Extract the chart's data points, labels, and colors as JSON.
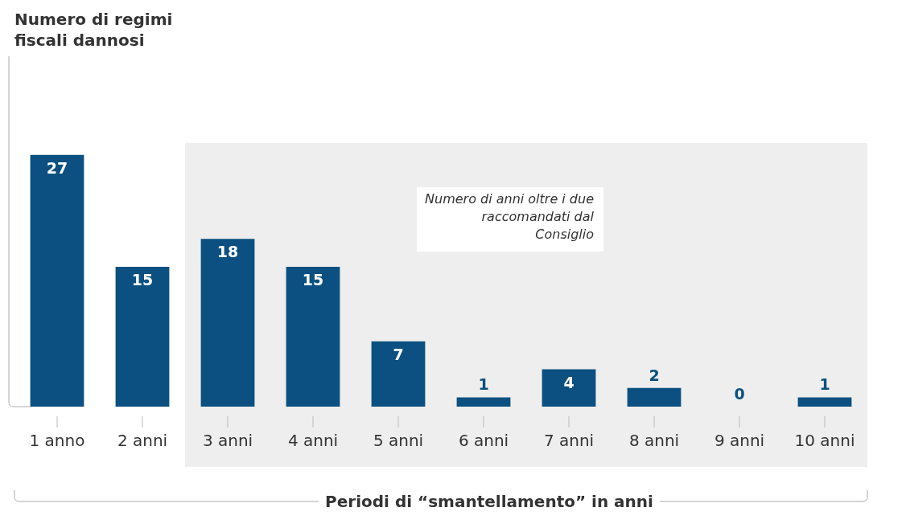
{
  "chart_data": {
    "type": "bar",
    "annotations": [
      "Numero di regimi fiscali dannosi"
    ],
    "xlabel": "Periodi di “smantellamento” in anni",
    "categories": [
      "1 anno",
      "2 anni",
      "3 anni",
      "4 anni",
      "5 anni",
      "6 anni",
      "7 anni",
      "8 anni",
      "9 anni",
      "10 anni"
    ],
    "values": [
      27,
      15,
      18,
      15,
      7,
      1,
      4,
      2,
      0,
      1
    ],
    "color": "#0b5080",
    "data_labels": true,
    "grid": false,
    "legend": false,
    "bands": [
      {
        "axis": "x",
        "from": "3 anni",
        "to": "10 anni",
        "label": "Numero di anni oltre i due raccomandati dal Consiglio",
        "color": "#eeeeee"
      }
    ]
  }
}
